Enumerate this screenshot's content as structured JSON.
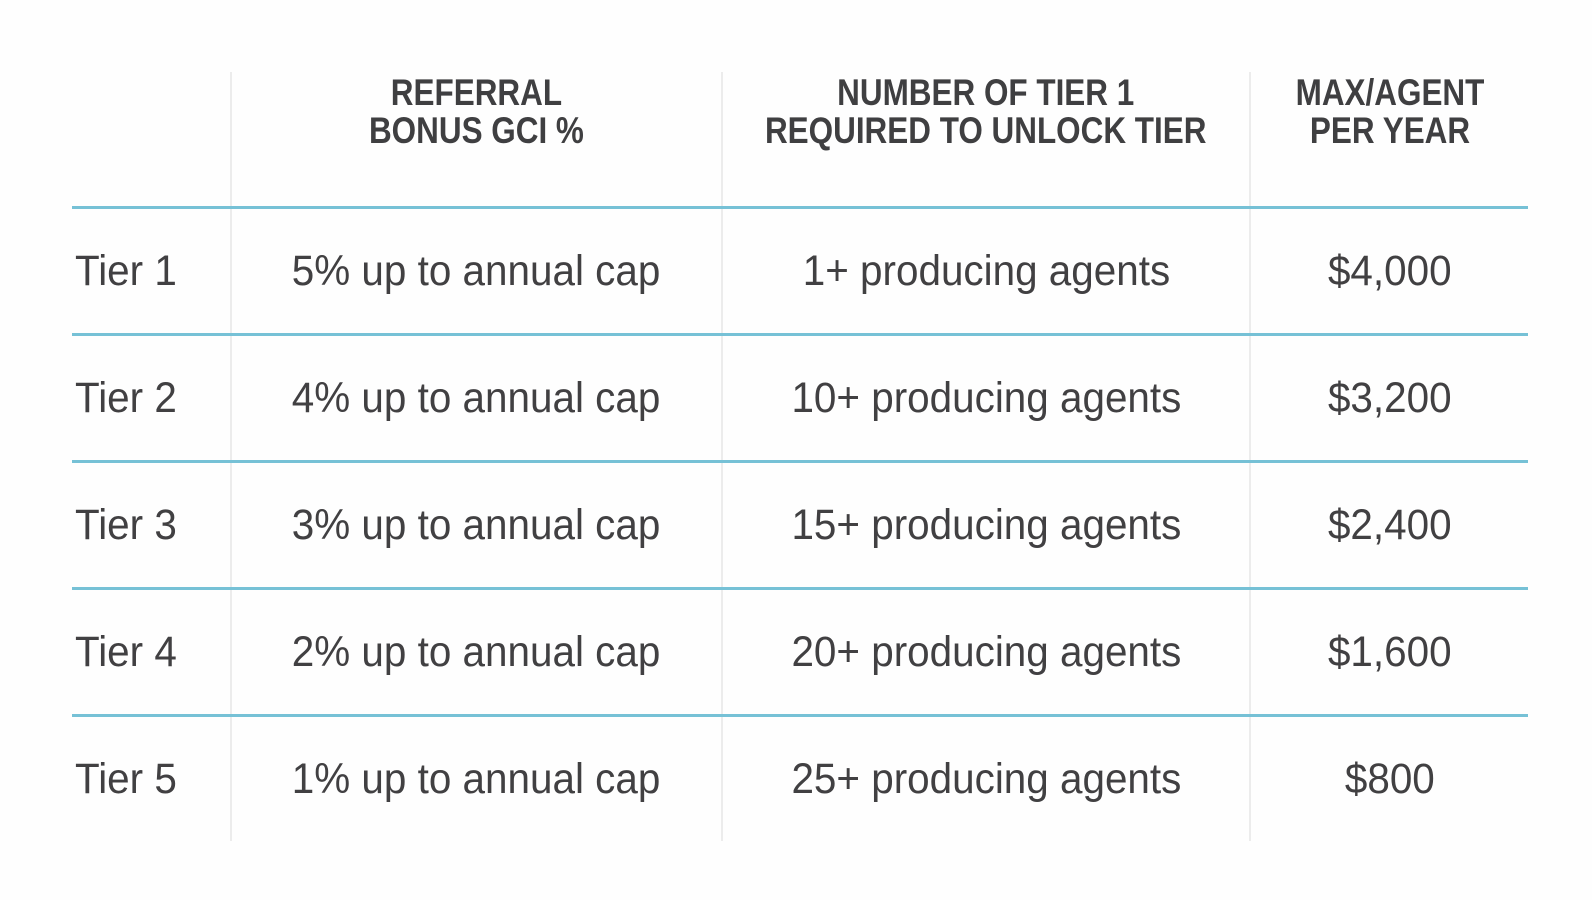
{
  "display": {
    "headers": [
      "",
      "REFERRAL\nBONUS GCI %",
      "NUMBER OF TIER 1\nREQUIRED TO UNLOCK TIER",
      "MAX/AGENT\nPER YEAR"
    ]
  },
  "chart_data": {
    "type": "table",
    "title": "",
    "columns": [
      "",
      "REFERRAL BONUS GCI %",
      "NUMBER OF TIER 1 REQUIRED TO UNLOCK TIER",
      "MAX/AGENT PER YEAR"
    ],
    "rows": [
      [
        "Tier 1",
        "5% up to annual cap",
        "1+ producing agents",
        "$4,000"
      ],
      [
        "Tier 2",
        "4% up to annual cap",
        "10+ producing agents",
        "$3,200"
      ],
      [
        "Tier 3",
        "3% up to annual cap",
        "15+ producing agents",
        "$2,400"
      ],
      [
        "Tier 4",
        "2% up to annual cap",
        "20+ producing agents",
        "$1,600"
      ],
      [
        "Tier 5",
        "1% up to annual cap",
        "25+ producing agents",
        "$800"
      ]
    ],
    "referral_bonus_pct": [
      5,
      4,
      3,
      2,
      1
    ],
    "required_tier1_agents": [
      1,
      10,
      15,
      20,
      25
    ],
    "max_per_agent_per_year_usd": [
      4000,
      3200,
      2400,
      1600,
      800
    ]
  },
  "colors": {
    "row_divider": "#76c1d6",
    "column_divider": "#ececec",
    "header_text": "#3f3f41",
    "body_text": "#414042",
    "background": "#fefefe"
  }
}
